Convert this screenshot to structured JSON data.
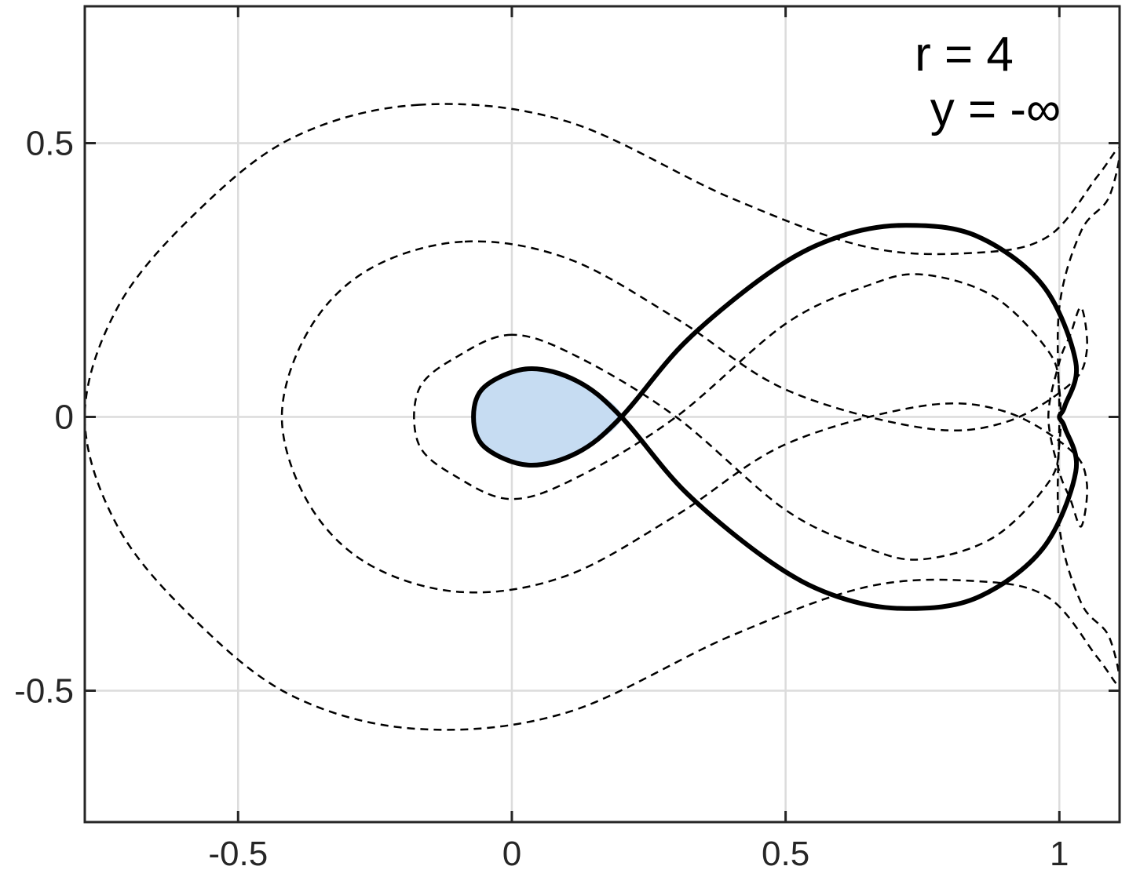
{
  "chart_data": {
    "type": "line",
    "title": "",
    "xlabel": "",
    "ylabel": "",
    "xlim": [
      -0.78,
      1.11
    ],
    "ylim": [
      -0.74,
      0.75
    ],
    "xticks": [
      -0.5,
      0,
      0.5,
      1
    ],
    "xtick_labels": [
      "-0.5",
      "0",
      "0.5",
      "1"
    ],
    "yticks": [
      -0.5,
      0,
      0.5
    ],
    "ytick_labels": [
      "-0.5",
      "0",
      "0.5"
    ],
    "grid": true,
    "annotations": [
      "r = 4",
      "y = -∞"
    ],
    "colors": {
      "fill": "#c6dcf2",
      "solid": "#000000",
      "dashed": "#000000",
      "grid": "#dcdcdc",
      "axis": "#262626"
    },
    "series": [
      {
        "style": "solid",
        "closed": true,
        "points": [
          [
            0.2,
            0
          ],
          [
            0.12,
            0.065
          ],
          [
            0.03,
            0.088
          ],
          [
            -0.05,
            0.055
          ],
          [
            -0.07,
            0
          ],
          [
            -0.05,
            -0.055
          ],
          [
            0.03,
            -0.088
          ],
          [
            0.12,
            -0.065
          ],
          [
            0.2,
            0
          ],
          [
            0.32,
            0.14
          ],
          [
            0.48,
            0.27
          ],
          [
            0.6,
            0.33
          ],
          [
            0.72,
            0.35
          ],
          [
            0.85,
            0.33
          ],
          [
            0.97,
            0.24
          ],
          [
            1.03,
            0.1
          ],
          [
            1.01,
            0.02
          ],
          [
            1.0,
            0
          ],
          [
            1.01,
            -0.02
          ],
          [
            1.03,
            -0.1
          ],
          [
            0.97,
            -0.24
          ],
          [
            0.85,
            -0.33
          ],
          [
            0.72,
            -0.35
          ],
          [
            0.6,
            -0.33
          ],
          [
            0.48,
            -0.27
          ],
          [
            0.32,
            -0.14
          ]
        ]
      },
      {
        "style": "dashed",
        "closed": true,
        "points": [
          [
            -0.17,
            0.57
          ],
          [
            -0.4,
            0.51
          ],
          [
            -0.58,
            0.37
          ],
          [
            -0.72,
            0.2
          ],
          [
            -0.78,
            0
          ],
          [
            -0.72,
            -0.2
          ],
          [
            -0.58,
            -0.37
          ],
          [
            -0.4,
            -0.51
          ],
          [
            -0.17,
            -0.57
          ],
          [
            0.1,
            -0.54
          ],
          [
            0.4,
            -0.4
          ],
          [
            0.65,
            -0.31
          ],
          [
            0.85,
            -0.3
          ],
          [
            0.98,
            -0.33
          ],
          [
            1.07,
            -0.44
          ],
          [
            1.11,
            -0.49
          ],
          [
            1.09,
            -0.4
          ],
          [
            1.04,
            -0.34
          ],
          [
            1.0,
            -0.2
          ],
          [
            1.0,
            0
          ],
          [
            1.0,
            0.2
          ],
          [
            1.04,
            0.34
          ],
          [
            1.09,
            0.4
          ],
          [
            1.11,
            0.49
          ],
          [
            1.07,
            0.44
          ],
          [
            0.98,
            0.33
          ],
          [
            0.85,
            0.3
          ],
          [
            0.65,
            0.31
          ],
          [
            0.4,
            0.4
          ],
          [
            0.1,
            0.54
          ]
        ]
      },
      {
        "style": "dashed",
        "closed": true,
        "points": [
          [
            -0.09,
            0.32
          ],
          [
            -0.26,
            0.27
          ],
          [
            -0.37,
            0.16
          ],
          [
            -0.42,
            0
          ],
          [
            -0.37,
            -0.16
          ],
          [
            -0.26,
            -0.27
          ],
          [
            -0.09,
            -0.32
          ],
          [
            0.1,
            -0.29
          ],
          [
            0.3,
            -0.18
          ],
          [
            0.5,
            -0.05
          ],
          [
            0.75,
            0.02
          ],
          [
            0.9,
            0.01
          ],
          [
            1.02,
            -0.06
          ],
          [
            1.05,
            -0.12
          ],
          [
            1.04,
            -0.2
          ],
          [
            1.02,
            -0.15
          ],
          [
            1.0,
            -0.1
          ],
          [
            0.98,
            0
          ],
          [
            1.0,
            0.1
          ],
          [
            1.02,
            0.15
          ],
          [
            1.04,
            0.2
          ],
          [
            1.05,
            0.12
          ],
          [
            1.02,
            0.06
          ],
          [
            0.9,
            -0.01
          ],
          [
            0.75,
            -0.02
          ],
          [
            0.5,
            0.05
          ],
          [
            0.3,
            0.18
          ],
          [
            0.1,
            0.29
          ]
        ]
      },
      {
        "style": "dashed",
        "closed": true,
        "points": [
          [
            0.0,
            0.15
          ],
          [
            -0.1,
            0.11
          ],
          [
            -0.17,
            0.05
          ],
          [
            -0.17,
            -0.05
          ],
          [
            -0.1,
            -0.11
          ],
          [
            0.0,
            -0.15
          ],
          [
            0.12,
            -0.11
          ],
          [
            0.3,
            0.0
          ],
          [
            0.5,
            0.17
          ],
          [
            0.65,
            0.24
          ],
          [
            0.75,
            0.26
          ],
          [
            0.88,
            0.22
          ],
          [
            0.98,
            0.12
          ],
          [
            1.0,
            0.05
          ],
          [
            1.0,
            -0.05
          ],
          [
            0.98,
            -0.12
          ],
          [
            0.88,
            -0.22
          ],
          [
            0.75,
            -0.26
          ],
          [
            0.65,
            -0.24
          ],
          [
            0.5,
            -0.17
          ],
          [
            0.3,
            0.0
          ],
          [
            0.12,
            0.11
          ]
        ]
      }
    ]
  }
}
